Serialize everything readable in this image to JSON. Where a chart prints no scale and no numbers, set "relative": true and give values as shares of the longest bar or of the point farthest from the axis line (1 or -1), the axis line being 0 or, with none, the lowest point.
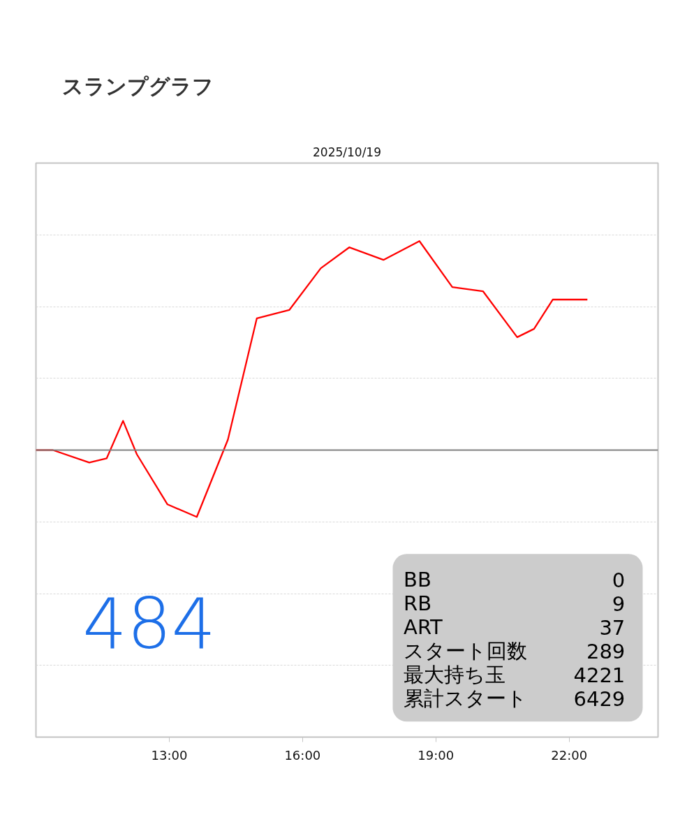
{
  "chart_data": {
    "type": "line",
    "title": "スランプグラフ",
    "subtitle": "2025/10/19",
    "relative": true,
    "x": [
      10.0,
      10.38,
      11.2,
      11.59,
      11.96,
      12.27,
      12.96,
      13.62,
      14.32,
      14.97,
      15.7,
      16.41,
      17.05,
      17.82,
      18.63,
      19.37,
      20.06,
      20.83,
      21.21,
      21.63,
      22.41
    ],
    "xlim": [
      10,
      24
    ],
    "xticks": [
      {
        "value": 13,
        "label": "13:00"
      },
      {
        "value": 16,
        "label": "16:00"
      },
      {
        "value": 19,
        "label": "19:00"
      },
      {
        "value": 22,
        "label": "22:00"
      }
    ],
    "series": [
      {
        "color": "#ff0000",
        "values": [
          0,
          0,
          -0.06,
          -0.04,
          0.14,
          -0.02,
          -0.26,
          -0.32,
          0.05,
          0.63,
          0.67,
          0.87,
          0.97,
          0.91,
          1.0,
          0.78,
          0.76,
          0.54,
          0.58,
          0.72,
          0.72
        ]
      }
    ],
    "grid": "y",
    "annotations": [
      "484",
      "BB",
      "0",
      "RB",
      "9",
      "ART",
      "37",
      "スタート回数",
      "289",
      "最大持ち玉",
      "4221",
      "累計スタート",
      "6429"
    ]
  }
}
